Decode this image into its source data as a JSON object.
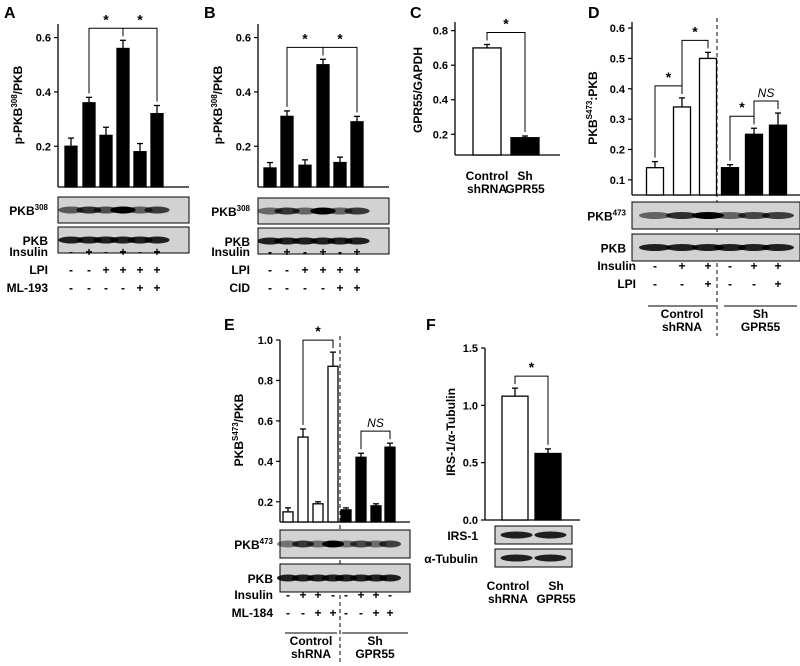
{
  "chart_data": [
    {
      "panel": "A",
      "type": "bar",
      "ylabel": "p-PKB308/PKB",
      "ylabel_main": "p-PKB",
      "ylabel_sup": "308",
      "ylabel_tail": "/PKB",
      "ylim": [
        0.05,
        0.65
      ],
      "yticks": [
        "0.2",
        "0.4",
        "0.6"
      ],
      "ytick_vals": [
        0.2,
        0.4,
        0.6
      ],
      "values": [
        0.2,
        0.36,
        0.24,
        0.56,
        0.18,
        0.32
      ],
      "errors": [
        0.03,
        0.02,
        0.03,
        0.03,
        0.03,
        0.03
      ],
      "fill": [
        "black",
        "black",
        "black",
        "black",
        "black",
        "black"
      ],
      "significance": [
        {
          "a": 1,
          "b": 3,
          "label": "*"
        },
        {
          "a": 3,
          "b": 5,
          "label": "*"
        }
      ],
      "blots": [
        {
          "label": "PKB",
          "sup": "308"
        },
        {
          "label": "PKB",
          "sup": ""
        }
      ],
      "conditions": [
        {
          "label": "Insulin",
          "signs": [
            "-",
            "+",
            "-",
            "+",
            "-",
            "+"
          ]
        },
        {
          "label": "LPI",
          "signs": [
            "-",
            "-",
            "+",
            "+",
            "+",
            "+"
          ]
        },
        {
          "label": "ML-193",
          "signs": [
            "-",
            "-",
            "-",
            "-",
            "+",
            "+"
          ]
        }
      ]
    },
    {
      "panel": "B",
      "type": "bar",
      "ylabel": "p-PKB308/PKB",
      "ylabel_main": "p-PKB",
      "ylabel_sup": "308",
      "ylabel_tail": "/PKB",
      "ylim": [
        0.05,
        0.65
      ],
      "yticks": [
        "0.2",
        "0.4",
        "0.6"
      ],
      "ytick_vals": [
        0.2,
        0.4,
        0.6
      ],
      "values": [
        0.12,
        0.31,
        0.13,
        0.5,
        0.14,
        0.29
      ],
      "errors": [
        0.02,
        0.02,
        0.02,
        0.02,
        0.02,
        0.02
      ],
      "fill": [
        "black",
        "black",
        "black",
        "black",
        "black",
        "black"
      ],
      "significance": [
        {
          "a": 1,
          "b": 3,
          "label": "*"
        },
        {
          "a": 3,
          "b": 5,
          "label": "*"
        }
      ],
      "blots": [
        {
          "label": "PKB",
          "sup": "308"
        },
        {
          "label": "PKB",
          "sup": ""
        }
      ],
      "conditions": [
        {
          "label": "Insulin",
          "signs": [
            "-",
            "+",
            "-",
            "+",
            "-",
            "+"
          ]
        },
        {
          "label": "LPI",
          "signs": [
            "-",
            "-",
            "+",
            "+",
            "+",
            "+"
          ]
        },
        {
          "label": "CID",
          "signs": [
            "-",
            "-",
            "-",
            "-",
            "+",
            "+"
          ]
        }
      ]
    },
    {
      "panel": "C",
      "type": "bar",
      "ylabel": "GPR55/GAPDH",
      "ylim": [
        0.08,
        0.85
      ],
      "yticks": [
        "0.2",
        "0.4",
        "0.6",
        "0.8"
      ],
      "ytick_vals": [
        0.2,
        0.4,
        0.6,
        0.8
      ],
      "values": [
        0.7,
        0.18
      ],
      "errors": [
        0.02,
        0.01
      ],
      "fill": [
        "white",
        "black"
      ],
      "significance": [
        {
          "a": 0,
          "b": 1,
          "label": "*"
        }
      ],
      "groups": [
        [
          "Control",
          "shRNA"
        ],
        [
          "Sh",
          "GPR55"
        ]
      ]
    },
    {
      "panel": "D",
      "type": "bar",
      "ylabel": "PKBS473:PKB",
      "ylabel_main": "PKB",
      "ylabel_sup": "S473",
      "ylabel_tail": ":PKB",
      "ylim": [
        0.05,
        0.62
      ],
      "yticks": [
        "0.1",
        "0.2",
        "0.3",
        "0.4",
        "0.5",
        "0.6"
      ],
      "ytick_vals": [
        0.1,
        0.2,
        0.3,
        0.4,
        0.5,
        0.6
      ],
      "values": [
        0.14,
        0.34,
        0.5,
        0.14,
        0.25,
        0.28
      ],
      "errors": [
        0.02,
        0.03,
        0.02,
        0.01,
        0.02,
        0.04
      ],
      "fill": [
        "white",
        "white",
        "white",
        "black",
        "black",
        "black"
      ],
      "significance": [
        {
          "a": 0,
          "b": 1,
          "label": "*"
        },
        {
          "a": 1,
          "b": 2,
          "label": "*"
        },
        {
          "a": 3,
          "b": 4,
          "label": "*"
        },
        {
          "a": 4,
          "b": 5,
          "label": "NS"
        }
      ],
      "blots": [
        {
          "label": "PKB",
          "sup": "473"
        },
        {
          "label": "PKB",
          "sup": ""
        }
      ],
      "conditions": [
        {
          "label": "Insulin",
          "signs": [
            "-",
            "+",
            "+",
            "-",
            "+",
            "+"
          ]
        },
        {
          "label": "LPI",
          "signs": [
            "-",
            "-",
            "+",
            "-",
            "-",
            "+"
          ]
        }
      ],
      "groups": [
        [
          "Control",
          "shRNA"
        ],
        [
          "Sh",
          "GPR55"
        ]
      ]
    },
    {
      "panel": "E",
      "type": "bar",
      "ylabel": "PKBS473/PKB",
      "ylabel_main": "PKB",
      "ylabel_sup": "S473",
      "ylabel_tail": "/PKB",
      "ylim": [
        0.1,
        1.0
      ],
      "yticks": [
        "0.2",
        "0.4",
        "0.6",
        "0.8",
        "1.0"
      ],
      "ytick_vals": [
        0.2,
        0.4,
        0.6,
        0.8,
        1.0
      ],
      "values": [
        0.15,
        0.52,
        0.19,
        0.87,
        0.16,
        0.42,
        0.18,
        0.47
      ],
      "errors": [
        0.02,
        0.04,
        0.01,
        0.07,
        0.01,
        0.02,
        0.01,
        0.02
      ],
      "fill": [
        "white",
        "white",
        "white",
        "white",
        "black",
        "black",
        "black",
        "black"
      ],
      "significance": [
        {
          "a": 1,
          "b": 3,
          "label": "*"
        },
        {
          "a": 5,
          "b": 7,
          "label": "NS"
        }
      ],
      "blots": [
        {
          "label": "PKB",
          "sup": "473"
        },
        {
          "label": "PKB",
          "sup": ""
        }
      ],
      "conditions": [
        {
          "label": "Insulin",
          "signs": [
            "-",
            "+",
            "+",
            "-",
            "-",
            "+",
            "+",
            "-"
          ]
        },
        {
          "label": "ML-184",
          "signs": [
            "-",
            "-",
            "+",
            "+",
            "-",
            "-",
            "+",
            "+"
          ]
        }
      ],
      "groups": [
        [
          "Control",
          "shRNA"
        ],
        [
          "Sh",
          "GPR55"
        ]
      ]
    },
    {
      "panel": "F",
      "type": "bar",
      "ylabel": "IRS-1/α-Tubulin",
      "ylim": [
        0,
        1.5
      ],
      "yticks": [
        "0.0",
        "0.5",
        "1.0",
        "1.5"
      ],
      "ytick_vals": [
        0,
        0.5,
        1.0,
        1.5
      ],
      "values": [
        1.08,
        0.58
      ],
      "errors": [
        0.07,
        0.04
      ],
      "fill": [
        "white",
        "black"
      ],
      "significance": [
        {
          "a": 0,
          "b": 1,
          "label": "*"
        }
      ],
      "blots": [
        {
          "label": "IRS-1",
          "sup": ""
        },
        {
          "label": "α-Tubulin",
          "sup": ""
        }
      ],
      "groups": [
        [
          "Control",
          "shRNA"
        ],
        [
          "Sh",
          "GPR55"
        ]
      ]
    }
  ]
}
